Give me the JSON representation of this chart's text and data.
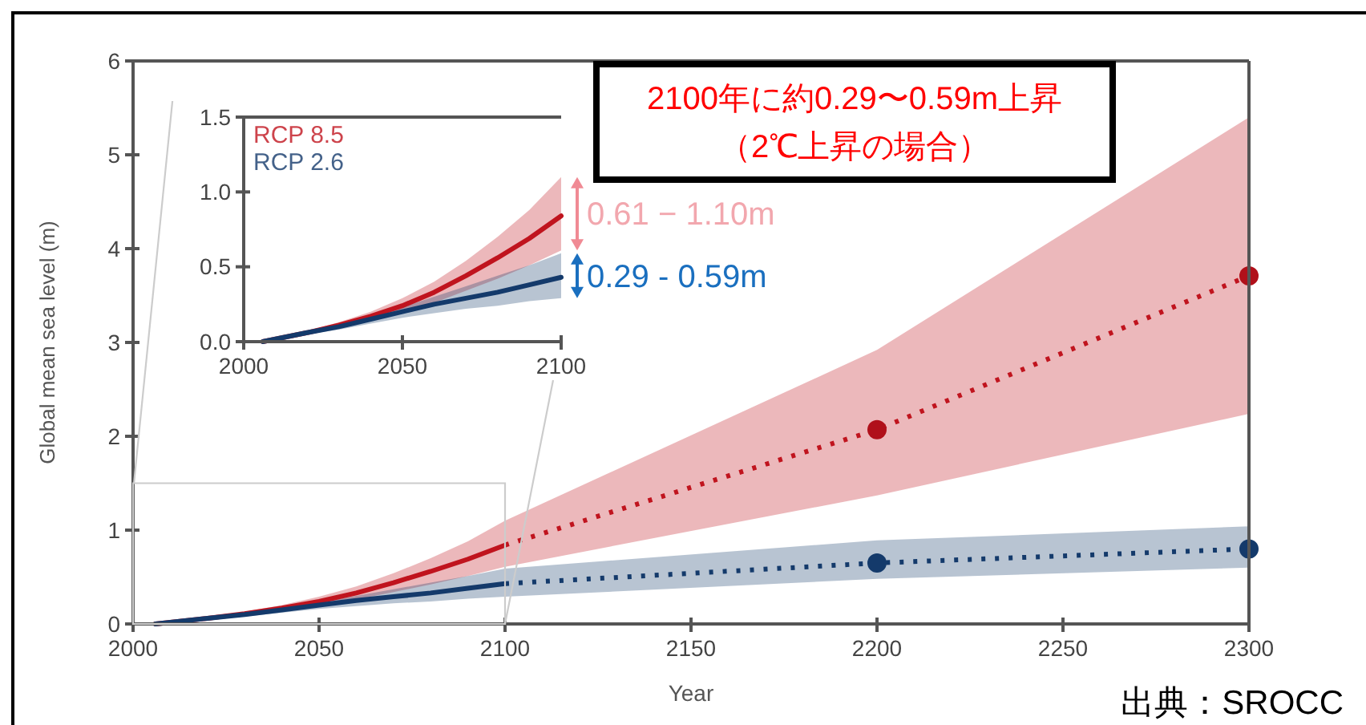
{
  "chart_data": [
    {
      "type": "line",
      "xlabel": "Year",
      "ylabel": "Global mean sea level (m)",
      "xlim": [
        2000,
        2300
      ],
      "ylim": [
        0,
        6
      ],
      "xticks": [
        2000,
        2050,
        2100,
        2150,
        2200,
        2250,
        2300
      ],
      "yticks": [
        0,
        1,
        2,
        3,
        4,
        5,
        6
      ],
      "grid": false,
      "annotations": [
        "2100年に約0.29〜0.59m上昇",
        "（2℃上昇の場合）",
        "出典：SROCC"
      ],
      "series": [
        {
          "type": "line",
          "color": "#c0141e",
          "line_style": "solid",
          "x": [
            2006,
            2020,
            2030,
            2040,
            2050,
            2060,
            2070,
            2080,
            2090,
            2100
          ],
          "values": [
            0,
            0.06,
            0.11,
            0.17,
            0.24,
            0.33,
            0.44,
            0.56,
            0.69,
            0.84
          ],
          "lower": [
            0,
            0.05,
            0.09,
            0.14,
            0.19,
            0.26,
            0.34,
            0.42,
            0.51,
            0.61
          ],
          "upper": [
            0,
            0.07,
            0.13,
            0.2,
            0.29,
            0.4,
            0.54,
            0.7,
            0.88,
            1.1
          ]
        },
        {
          "type": "line",
          "color": "#c0141e",
          "line_style": "dotted",
          "x": [
            2100,
            2200,
            2300
          ],
          "values": [
            0.84,
            2.07,
            3.71
          ],
          "lower": [
            0.61,
            1.37,
            2.24
          ],
          "upper": [
            1.1,
            2.92,
            5.4
          ]
        },
        {
          "type": "scatter",
          "color": "#b0101a",
          "marker": "circle",
          "x": [
            2200,
            2300
          ],
          "values": [
            2.07,
            3.71
          ]
        },
        {
          "type": "line",
          "color": "#143a6b",
          "line_style": "solid",
          "x": [
            2006,
            2020,
            2030,
            2040,
            2050,
            2060,
            2070,
            2080,
            2090,
            2100
          ],
          "values": [
            0,
            0.06,
            0.1,
            0.15,
            0.2,
            0.25,
            0.29,
            0.33,
            0.38,
            0.43
          ],
          "lower": [
            0,
            0.05,
            0.08,
            0.12,
            0.16,
            0.19,
            0.22,
            0.24,
            0.27,
            0.29
          ],
          "upper": [
            0,
            0.07,
            0.12,
            0.17,
            0.23,
            0.3,
            0.37,
            0.44,
            0.51,
            0.59
          ]
        },
        {
          "type": "line",
          "color": "#143a6b",
          "line_style": "dotted",
          "x": [
            2100,
            2200,
            2300
          ],
          "values": [
            0.43,
            0.65,
            0.8
          ],
          "lower": [
            0.29,
            0.48,
            0.6
          ],
          "upper": [
            0.59,
            0.89,
            1.04
          ]
        },
        {
          "type": "scatter",
          "color": "#143a6b",
          "marker": "circle",
          "x": [
            2200,
            2300
          ],
          "values": [
            0.65,
            0.8
          ]
        }
      ]
    },
    {
      "type": "line",
      "xlim": [
        2000,
        2100
      ],
      "ylim": [
        0,
        1.5
      ],
      "xticks": [
        2000,
        2050,
        2100
      ],
      "yticks": [
        {
          "value": 0,
          "label": "0.0"
        },
        {
          "value": 0.5,
          "label": "0.5"
        },
        {
          "value": 1,
          "label": "1.0"
        },
        {
          "value": 1.5,
          "label": "1.5"
        }
      ],
      "grid": false,
      "legend": "top left",
      "annotations": [
        {
          "text": "0.61 − 1.10m",
          "x": 2100,
          "y": 0.855
        },
        {
          "text": "0.29 - 0.59m",
          "x": 2100,
          "y": 0.44
        }
      ],
      "series": [
        {
          "name": "RCP 8.5",
          "type": "line",
          "color": "#c0141e",
          "line_style": "solid",
          "x": [
            2006,
            2020,
            2030,
            2040,
            2050,
            2060,
            2070,
            2080,
            2090,
            2100
          ],
          "values": [
            0,
            0.06,
            0.11,
            0.17,
            0.24,
            0.33,
            0.44,
            0.56,
            0.69,
            0.84
          ],
          "lower": [
            0,
            0.05,
            0.09,
            0.14,
            0.19,
            0.26,
            0.34,
            0.42,
            0.51,
            0.61
          ],
          "upper": [
            0,
            0.07,
            0.13,
            0.2,
            0.29,
            0.4,
            0.54,
            0.7,
            0.88,
            1.1
          ]
        },
        {
          "name": "RCP 2.6",
          "type": "line",
          "color": "#143a6b",
          "line_style": "solid",
          "x": [
            2006,
            2020,
            2030,
            2040,
            2050,
            2060,
            2070,
            2080,
            2090,
            2100
          ],
          "values": [
            0,
            0.06,
            0.1,
            0.15,
            0.2,
            0.25,
            0.29,
            0.33,
            0.38,
            0.43
          ],
          "lower": [
            0,
            0.05,
            0.08,
            0.12,
            0.16,
            0.19,
            0.22,
            0.24,
            0.27,
            0.29
          ],
          "upper": [
            0,
            0.07,
            0.12,
            0.17,
            0.23,
            0.3,
            0.37,
            0.44,
            0.51,
            0.59
          ]
        }
      ]
    }
  ]
}
